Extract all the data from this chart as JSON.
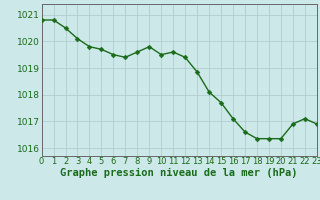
{
  "hours": [
    0,
    1,
    2,
    3,
    4,
    5,
    6,
    7,
    8,
    9,
    10,
    11,
    12,
    13,
    14,
    15,
    16,
    17,
    18,
    19,
    20,
    21,
    22,
    23
  ],
  "pressure": [
    1020.8,
    1020.8,
    1020.5,
    1020.1,
    1019.8,
    1019.7,
    1019.5,
    1019.4,
    1019.6,
    1019.8,
    1019.5,
    1019.6,
    1019.4,
    1018.85,
    1018.1,
    1017.7,
    1017.1,
    1016.6,
    1016.35,
    1016.35,
    1016.35,
    1016.9,
    1017.1,
    1016.9
  ],
  "line_color": "#1a6b1a",
  "marker": "D",
  "marker_size": 2.5,
  "bg_color": "#cce8e8",
  "grid_color": "#adc8c8",
  "xlabel": "Graphe pression niveau de la mer (hPa)",
  "xlabel_color": "#1a6b1a",
  "xlabel_fontsize": 7.5,
  "tick_color": "#1a6b1a",
  "tick_fontsize": 6,
  "ytick_fontsize": 6.5,
  "ylim": [
    1015.7,
    1021.4
  ],
  "yticks": [
    1016,
    1017,
    1018,
    1019,
    1020,
    1021
  ],
  "xticks": [
    0,
    1,
    2,
    3,
    4,
    5,
    6,
    7,
    8,
    9,
    10,
    11,
    12,
    13,
    14,
    15,
    16,
    17,
    18,
    19,
    20,
    21,
    22,
    23
  ],
  "spine_color": "#666666",
  "line_width": 1.0
}
